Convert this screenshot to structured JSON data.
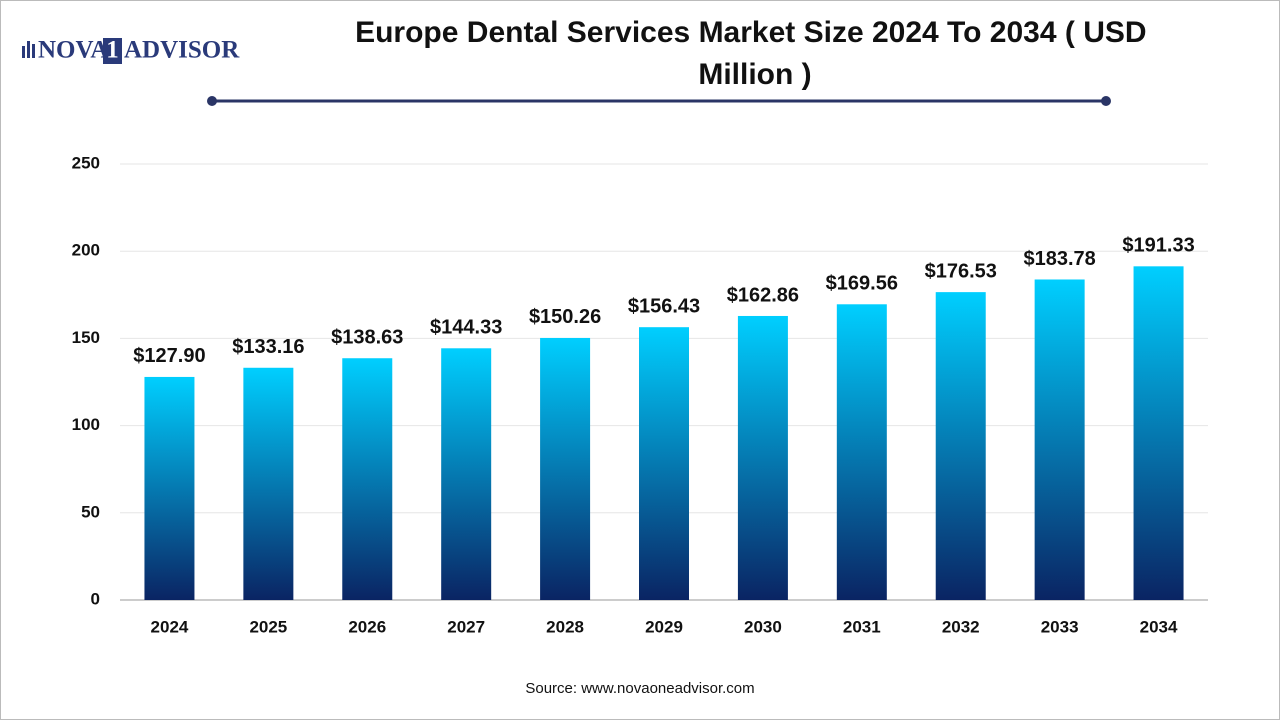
{
  "chart_data": {
    "type": "bar",
    "title": "Europe Dental Services Market Size 2024 To 2034 ( USD Million )",
    "logo": [
      "NOVA",
      "1",
      "ADVISOR"
    ],
    "source": "Source: www.novaoneadvisor.com",
    "categories": [
      "2024",
      "2025",
      "2026",
      "2027",
      "2028",
      "2029",
      "2030",
      "2031",
      "2032",
      "2033",
      "2034"
    ],
    "values": [
      127.9,
      133.16,
      138.63,
      144.33,
      150.26,
      156.43,
      162.86,
      169.56,
      176.53,
      183.78,
      191.33
    ],
    "value_labels": [
      "$127.90",
      "$133.16",
      "$138.63",
      "$144.33",
      "$150.26",
      "$156.43",
      "$162.86",
      "$169.56",
      "$176.53",
      "$183.78",
      "$191.33"
    ],
    "gradient": [
      "#00cfff",
      "#0a2463"
    ],
    "ylim": [
      0,
      250
    ],
    "yticks": [
      0,
      50,
      100,
      150,
      200,
      250
    ],
    "grid": true
  }
}
